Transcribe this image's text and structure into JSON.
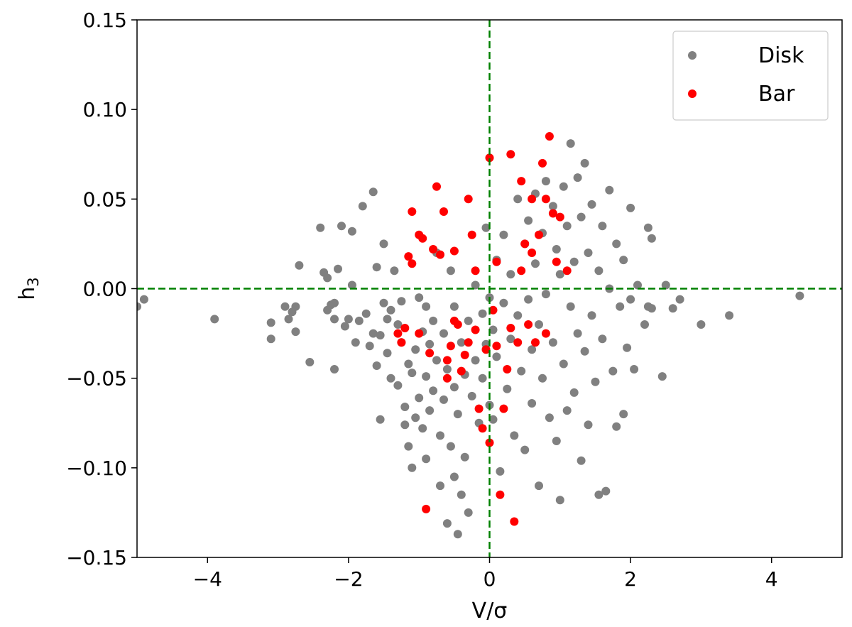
{
  "chart_data": {
    "type": "scatter",
    "title": "",
    "xlabel": "V/σ",
    "ylabel_main": "h",
    "ylabel_sub": "3",
    "xlim": [
      -5,
      5
    ],
    "ylim": [
      -0.15,
      0.15
    ],
    "x_ticks": [
      -4,
      -2,
      0,
      2,
      4
    ],
    "x_tick_labels": [
      "−4",
      "−2",
      "0",
      "2",
      "4"
    ],
    "y_ticks": [
      -0.15,
      -0.1,
      -0.05,
      0.0,
      0.05,
      0.1,
      0.15
    ],
    "y_tick_labels": [
      "−0.15",
      "−0.10",
      "−0.05",
      "0.00",
      "0.05",
      "0.10",
      "0.15"
    ],
    "reference_lines": {
      "x": 0,
      "y": 0,
      "color": "#008000",
      "style": "dashed"
    },
    "legend": {
      "placement": "top-right",
      "entries": [
        "Disk",
        "Bar"
      ]
    },
    "grid": false,
    "series": [
      {
        "name": "Disk",
        "color": "#808080",
        "points": [
          [
            -5.0,
            -0.01
          ],
          [
            -4.9,
            -0.006
          ],
          [
            -3.9,
            -0.017
          ],
          [
            -3.1,
            -0.019
          ],
          [
            -3.1,
            -0.028
          ],
          [
            -2.9,
            -0.01
          ],
          [
            -2.85,
            -0.017
          ],
          [
            -2.8,
            -0.013
          ],
          [
            -2.75,
            -0.024
          ],
          [
            -2.75,
            -0.01
          ],
          [
            -2.7,
            0.013
          ],
          [
            -2.55,
            -0.041
          ],
          [
            -2.4,
            0.034
          ],
          [
            -2.35,
            0.009
          ],
          [
            -2.3,
            -0.012
          ],
          [
            -2.3,
            0.006
          ],
          [
            -2.25,
            -0.009
          ],
          [
            -2.2,
            -0.017
          ],
          [
            -2.2,
            -0.045
          ],
          [
            -2.2,
            -0.008
          ],
          [
            -2.15,
            0.011
          ],
          [
            -2.1,
            0.035
          ],
          [
            -2.05,
            -0.021
          ],
          [
            -2.0,
            -0.017
          ],
          [
            -1.95,
            0.032
          ],
          [
            -1.95,
            0.002
          ],
          [
            -1.9,
            -0.03
          ],
          [
            -1.85,
            -0.018
          ],
          [
            -1.8,
            0.046
          ],
          [
            -1.75,
            -0.014
          ],
          [
            -1.7,
            -0.032
          ],
          [
            -1.65,
            0.054
          ],
          [
            -1.65,
            -0.025
          ],
          [
            -1.6,
            0.012
          ],
          [
            -1.6,
            -0.043
          ],
          [
            -1.55,
            -0.026
          ],
          [
            -1.55,
            -0.073
          ],
          [
            -1.5,
            0.025
          ],
          [
            -1.5,
            -0.008
          ],
          [
            -1.45,
            -0.017
          ],
          [
            -1.45,
            -0.036
          ],
          [
            -1.4,
            -0.05
          ],
          [
            -1.4,
            -0.012
          ],
          [
            -1.35,
            0.01
          ],
          [
            -1.3,
            -0.02
          ],
          [
            -1.3,
            -0.054
          ],
          [
            -1.25,
            -0.007
          ],
          [
            -1.25,
            -0.03
          ],
          [
            -1.2,
            -0.066
          ],
          [
            -1.2,
            -0.076
          ],
          [
            -1.15,
            -0.042
          ],
          [
            -1.15,
            -0.088
          ],
          [
            -1.1,
            -0.047
          ],
          [
            -1.1,
            -0.1
          ],
          [
            -1.05,
            -0.034
          ],
          [
            -1.05,
            -0.072
          ],
          [
            -1.0,
            -0.005
          ],
          [
            -1.0,
            -0.061
          ],
          [
            -0.95,
            -0.024
          ],
          [
            -0.95,
            -0.078
          ],
          [
            -0.9,
            -0.01
          ],
          [
            -0.9,
            -0.049
          ],
          [
            -0.9,
            -0.095
          ],
          [
            -0.85,
            -0.031
          ],
          [
            -0.85,
            -0.068
          ],
          [
            -0.8,
            -0.018
          ],
          [
            -0.8,
            -0.057
          ],
          [
            -0.75,
            0.02
          ],
          [
            -0.75,
            -0.04
          ],
          [
            -0.7,
            -0.082
          ],
          [
            -0.7,
            -0.11
          ],
          [
            -0.65,
            -0.025
          ],
          [
            -0.65,
            -0.062
          ],
          [
            -0.6,
            -0.045
          ],
          [
            -0.6,
            -0.131
          ],
          [
            -0.55,
            0.01
          ],
          [
            -0.55,
            -0.088
          ],
          [
            -0.5,
            -0.01
          ],
          [
            -0.5,
            -0.055
          ],
          [
            -0.5,
            -0.105
          ],
          [
            -0.45,
            -0.07
          ],
          [
            -0.45,
            -0.137
          ],
          [
            -0.4,
            -0.03
          ],
          [
            -0.4,
            -0.115
          ],
          [
            -0.35,
            -0.048
          ],
          [
            -0.35,
            -0.094
          ],
          [
            -0.3,
            -0.125
          ],
          [
            -0.3,
            -0.018
          ],
          [
            -0.25,
            -0.06
          ],
          [
            -0.2,
            0.002
          ],
          [
            -0.2,
            -0.04
          ],
          [
            -0.15,
            -0.075
          ],
          [
            -0.1,
            -0.014
          ],
          [
            -0.1,
            -0.05
          ],
          [
            -0.05,
            0.034
          ],
          [
            -0.05,
            -0.031
          ],
          [
            0.0,
            -0.065
          ],
          [
            0.0,
            -0.005
          ],
          [
            0.05,
            -0.023
          ],
          [
            0.05,
            -0.073
          ],
          [
            0.1,
            0.016
          ],
          [
            0.1,
            -0.038
          ],
          [
            0.15,
            -0.102
          ],
          [
            0.2,
            0.03
          ],
          [
            0.2,
            -0.008
          ],
          [
            0.25,
            -0.056
          ],
          [
            0.3,
            0.008
          ],
          [
            0.3,
            -0.028
          ],
          [
            0.35,
            -0.082
          ],
          [
            0.4,
            0.05
          ],
          [
            0.4,
            -0.015
          ],
          [
            0.45,
            -0.046
          ],
          [
            0.5,
            0.025
          ],
          [
            0.5,
            -0.09
          ],
          [
            0.55,
            0.038
          ],
          [
            0.55,
            -0.006
          ],
          [
            0.6,
            -0.034
          ],
          [
            0.6,
            -0.064
          ],
          [
            0.65,
            0.053
          ],
          [
            0.65,
            0.014
          ],
          [
            0.7,
            -0.02
          ],
          [
            0.7,
            -0.11
          ],
          [
            0.75,
            0.031
          ],
          [
            0.75,
            -0.05
          ],
          [
            0.8,
            0.06
          ],
          [
            0.8,
            -0.003
          ],
          [
            0.85,
            -0.072
          ],
          [
            0.9,
            0.046
          ],
          [
            0.9,
            -0.03
          ],
          [
            0.95,
            0.022
          ],
          [
            0.95,
            -0.085
          ],
          [
            1.0,
            0.008
          ],
          [
            1.0,
            -0.118
          ],
          [
            1.05,
            0.057
          ],
          [
            1.05,
            -0.042
          ],
          [
            1.1,
            0.035
          ],
          [
            1.1,
            -0.068
          ],
          [
            1.15,
            0.081
          ],
          [
            1.15,
            -0.01
          ],
          [
            1.2,
            0.015
          ],
          [
            1.2,
            -0.058
          ],
          [
            1.25,
            0.062
          ],
          [
            1.25,
            -0.025
          ],
          [
            1.3,
            0.04
          ],
          [
            1.3,
            -0.096
          ],
          [
            1.35,
            0.07
          ],
          [
            1.35,
            -0.035
          ],
          [
            1.4,
            0.02
          ],
          [
            1.4,
            -0.076
          ],
          [
            1.45,
            0.047
          ],
          [
            1.45,
            -0.015
          ],
          [
            1.5,
            -0.052
          ],
          [
            1.55,
            0.01
          ],
          [
            1.55,
            -0.115
          ],
          [
            1.6,
            0.035
          ],
          [
            1.6,
            -0.028
          ],
          [
            1.65,
            -0.113
          ],
          [
            1.7,
            0.055
          ],
          [
            1.7,
            0.0
          ],
          [
            1.75,
            -0.046
          ],
          [
            1.8,
            0.025
          ],
          [
            1.8,
            -0.077
          ],
          [
            1.85,
            -0.01
          ],
          [
            1.9,
            0.016
          ],
          [
            1.9,
            -0.07
          ],
          [
            1.95,
            -0.033
          ],
          [
            2.0,
            0.045
          ],
          [
            2.0,
            -0.006
          ],
          [
            2.05,
            -0.045
          ],
          [
            2.1,
            0.002
          ],
          [
            2.2,
            -0.02
          ],
          [
            2.25,
            0.034
          ],
          [
            2.25,
            -0.01
          ],
          [
            2.3,
            0.028
          ],
          [
            2.3,
            -0.011
          ],
          [
            2.45,
            -0.049
          ],
          [
            2.5,
            0.002
          ],
          [
            2.6,
            -0.011
          ],
          [
            2.7,
            -0.006
          ],
          [
            3.0,
            -0.02
          ],
          [
            3.4,
            -0.015
          ],
          [
            4.4,
            -0.004
          ]
        ]
      },
      {
        "name": "Bar",
        "color": "#ff0000",
        "points": [
          [
            -1.3,
            -0.025
          ],
          [
            -1.25,
            -0.03
          ],
          [
            -1.2,
            -0.022
          ],
          [
            -1.15,
            0.018
          ],
          [
            -1.1,
            0.043
          ],
          [
            -1.1,
            0.014
          ],
          [
            -1.0,
            0.03
          ],
          [
            -1.0,
            -0.025
          ],
          [
            -0.95,
            0.028
          ],
          [
            -0.9,
            -0.123
          ],
          [
            -0.85,
            -0.036
          ],
          [
            -0.8,
            0.022
          ],
          [
            -0.75,
            0.057
          ],
          [
            -0.7,
            0.019
          ],
          [
            -0.65,
            0.043
          ],
          [
            -0.6,
            -0.04
          ],
          [
            -0.6,
            -0.05
          ],
          [
            -0.55,
            -0.032
          ],
          [
            -0.5,
            0.021
          ],
          [
            -0.5,
            -0.018
          ],
          [
            -0.45,
            -0.02
          ],
          [
            -0.4,
            -0.046
          ],
          [
            -0.35,
            -0.037
          ],
          [
            -0.3,
            0.05
          ],
          [
            -0.3,
            -0.03
          ],
          [
            -0.25,
            0.03
          ],
          [
            -0.2,
            0.01
          ],
          [
            -0.2,
            -0.023
          ],
          [
            -0.15,
            -0.067
          ],
          [
            -0.1,
            -0.078
          ],
          [
            -0.05,
            -0.034
          ],
          [
            0.0,
            0.073
          ],
          [
            0.0,
            -0.086
          ],
          [
            0.05,
            -0.012
          ],
          [
            0.1,
            0.015
          ],
          [
            0.1,
            -0.032
          ],
          [
            0.15,
            -0.115
          ],
          [
            0.2,
            -0.067
          ],
          [
            0.25,
            -0.045
          ],
          [
            0.3,
            0.075
          ],
          [
            0.3,
            -0.022
          ],
          [
            0.35,
            -0.13
          ],
          [
            0.4,
            -0.03
          ],
          [
            0.45,
            0.06
          ],
          [
            0.45,
            0.01
          ],
          [
            0.5,
            0.025
          ],
          [
            0.55,
            -0.02
          ],
          [
            0.6,
            0.05
          ],
          [
            0.6,
            0.02
          ],
          [
            0.65,
            -0.03
          ],
          [
            0.7,
            0.03
          ],
          [
            0.75,
            0.07
          ],
          [
            0.8,
            0.05
          ],
          [
            0.8,
            -0.025
          ],
          [
            0.85,
            0.085
          ],
          [
            0.9,
            0.042
          ],
          [
            0.95,
            0.015
          ],
          [
            1.0,
            0.04
          ],
          [
            1.1,
            0.01
          ]
        ]
      }
    ]
  }
}
